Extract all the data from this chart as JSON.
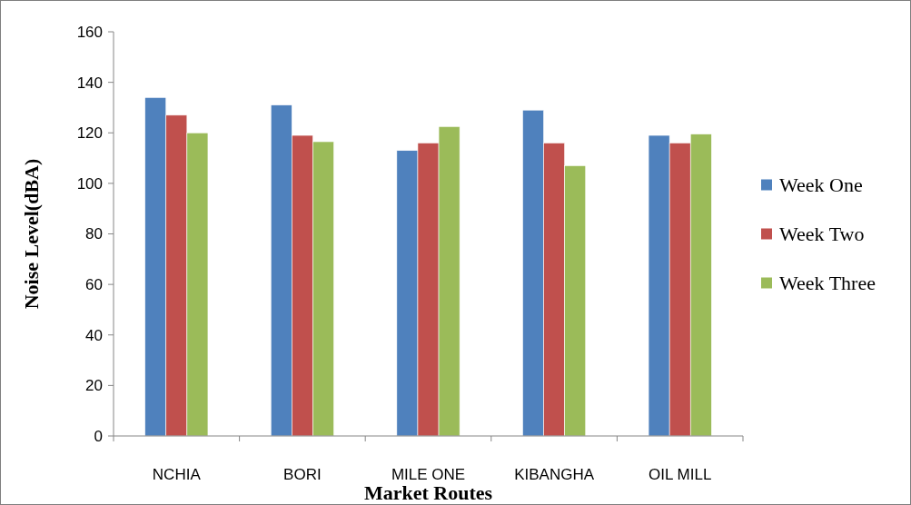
{
  "chart_data": {
    "type": "bar",
    "xlabel": "Market Routes",
    "ylabel": "Noise Level(dBA)",
    "categories": [
      "NCHIA",
      "BORI",
      "MILE ONE",
      "KIBANGHA",
      "OIL MILL"
    ],
    "series": [
      {
        "name": "Week One",
        "color": "#4f81bd",
        "values": [
          134,
          131,
          113,
          129,
          119
        ]
      },
      {
        "name": "Week Two",
        "color": "#c0504d",
        "values": [
          127,
          119,
          116,
          116,
          116
        ]
      },
      {
        "name": "Week Three",
        "color": "#9bbb59",
        "values": [
          120,
          116.5,
          122.5,
          107,
          119.5
        ]
      }
    ],
    "ylim": [
      0,
      160
    ],
    "yticks": [
      0,
      20,
      40,
      60,
      80,
      100,
      120,
      140,
      160
    ],
    "grid": false,
    "legend": "right"
  }
}
